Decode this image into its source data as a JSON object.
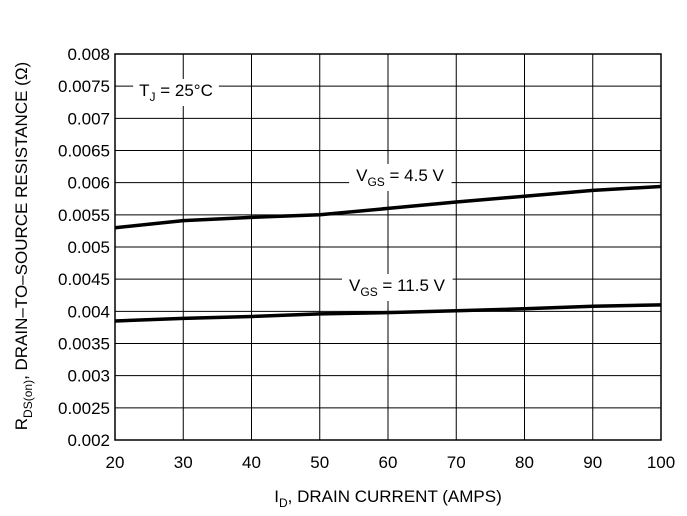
{
  "chart_data": {
    "type": "line",
    "xlabel": {
      "main": "I",
      "sub": "D",
      "rest": ", DRAIN CURRENT (AMPS)"
    },
    "ylabel": {
      "main": "R",
      "sub": "DS(on)",
      "rest": ", DRAIN–TO–SOURCE RESISTANCE (Ω)"
    },
    "xlim": [
      20,
      100
    ],
    "ylim": [
      0.002,
      0.008
    ],
    "xticks": [
      "20",
      "30",
      "40",
      "50",
      "60",
      "70",
      "80",
      "90",
      "100"
    ],
    "yticks": [
      "0.002",
      "0.0025",
      "0.003",
      "0.0035",
      "0.004",
      "0.0045",
      "0.005",
      "0.0055",
      "0.006",
      "0.0065",
      "0.007",
      "0.0075",
      "0.008"
    ],
    "grid": true,
    "annotation": {
      "main": "T",
      "sub": "J",
      "rest": " = 25°C"
    },
    "series": [
      {
        "label": {
          "main": "V",
          "sub": "GS",
          "rest": " = 4.5 V"
        },
        "x": [
          20,
          30,
          40,
          50,
          60,
          70,
          80,
          90,
          100
        ],
        "y": [
          0.0053,
          0.00541,
          0.00546,
          0.0055,
          0.0056,
          0.0057,
          0.00579,
          0.00588,
          0.00594
        ]
      },
      {
        "label": {
          "main": "V",
          "sub": "GS",
          "rest": " = 11.5 V"
        },
        "x": [
          20,
          30,
          40,
          50,
          60,
          70,
          80,
          90,
          100
        ],
        "y": [
          0.00385,
          0.00389,
          0.00392,
          0.00396,
          0.00398,
          0.00401,
          0.00404,
          0.00408,
          0.0041
        ]
      }
    ]
  }
}
